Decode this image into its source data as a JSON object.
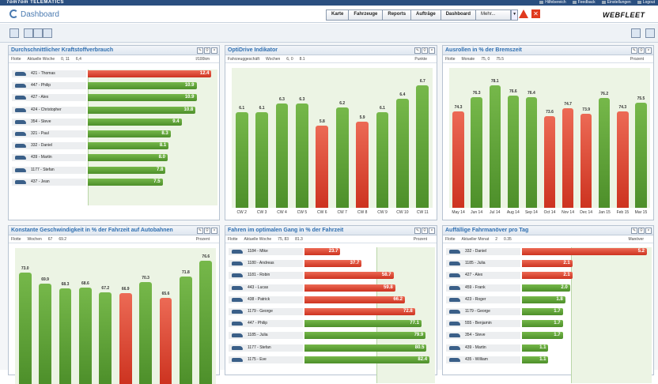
{
  "top": {
    "brand": "TomTom",
    "brand2": "TELEMATICS",
    "links": [
      "Hilfebereich",
      "Feedback",
      "Einstellungen",
      "Logout"
    ]
  },
  "header": {
    "title": "Dashboard",
    "nav": [
      "Karte",
      "Fahrzeuge",
      "Reports",
      "Aufträge",
      "Dashboard",
      "Mehr..."
    ],
    "logo": "WEBFLEET"
  },
  "p1": {
    "title": "Durchschnittlicher Kraftstoffverbrauch",
    "sub": [
      "Flotte",
      "Aktuelle Woche",
      "0, 11",
      "6,4"
    ],
    "unit": "l/100km",
    "rows": [
      {
        "n": "421 - Thomas",
        "v": 12.4,
        "c": "red"
      },
      {
        "n": "447 - Philip",
        "v": 10.9,
        "c": "green"
      },
      {
        "n": "427 - Alex",
        "v": 10.9,
        "c": "green"
      },
      {
        "n": "424 - Christopher",
        "v": 10.8,
        "c": "green"
      },
      {
        "n": "354 - Steve",
        "v": 9.4,
        "c": "green"
      },
      {
        "n": "321 - Paul",
        "v": 8.3,
        "c": "green"
      },
      {
        "n": "332 - Daniel",
        "v": 8.1,
        "c": "green"
      },
      {
        "n": "439 - Martin",
        "v": 8.0,
        "c": "green"
      },
      {
        "n": "1177 - Stefan",
        "v": 7.8,
        "c": "green"
      },
      {
        "n": "437 - Jean",
        "v": 7.5,
        "c": "green"
      }
    ]
  },
  "p2": {
    "title": "OptiDrive Indikator",
    "sub": [
      "Fahrzeuggeschäft",
      "Wochen",
      "6, 0",
      "8.1"
    ],
    "unit": "Punkte",
    "cats": [
      "CW 2",
      "CW 3",
      "CW 4",
      "CW 5",
      "CW 6",
      "CW 7",
      "CW 8",
      "CW 9",
      "CW 10",
      "CW 11"
    ],
    "vals": [
      6.1,
      6.1,
      6.3,
      6.3,
      5.8,
      6.2,
      5.9,
      6.1,
      6.4,
      6.7
    ],
    "cols": [
      "green",
      "green",
      "green",
      "green",
      "red",
      "green",
      "red",
      "green",
      "green",
      "green"
    ]
  },
  "p3": {
    "title": "Ausrollen in % der Bremszeit",
    "sub": [
      "Flotte",
      "Monate",
      "75, 0",
      "75.5"
    ],
    "unit": "Prozent",
    "cats": [
      "May 14",
      "Jun 14",
      "Jul 14",
      "Aug 14",
      "Sep 14",
      "Oct 14",
      "Nov 14",
      "Dec 14",
      "Jan 15",
      "Feb 15",
      "Mar 15"
    ],
    "vals": [
      74.3,
      76.3,
      78.1,
      76.6,
      76.4,
      73.6,
      74.7,
      73.9,
      76.2,
      74.3,
      75.5
    ],
    "cols": [
      "red",
      "green",
      "green",
      "green",
      "green",
      "red",
      "red",
      "red",
      "green",
      "red",
      "green"
    ]
  },
  "p4": {
    "title": "Konstante Geschwindigkeit in % der Fahrzeit auf Autobahnen",
    "sub": [
      "Flotte",
      "Wochen",
      "67",
      "69.2"
    ],
    "unit": "Prozent",
    "vals": [
      73.0,
      69.9,
      68.3,
      68.6,
      67.2,
      66.9,
      70.3,
      65.6,
      71.8,
      76.6
    ],
    "cols": [
      "green",
      "green",
      "green",
      "green",
      "green",
      "red",
      "green",
      "red",
      "green",
      "green"
    ]
  },
  "p5": {
    "title": "Fahren im optimalen Gang in % der Fahrzeit",
    "sub": [
      "Flotte",
      "Aktuelle Woche",
      "75, 83",
      "81.3"
    ],
    "unit": "Prozent",
    "rows": [
      {
        "n": "1184 - Mike",
        "v": 23.7,
        "c": "red"
      },
      {
        "n": "1180 - Andreas",
        "v": 37.7,
        "c": "red"
      },
      {
        "n": "1181 - Robin",
        "v": 58.7,
        "c": "red"
      },
      {
        "n": "443 - Lucas",
        "v": 59.8,
        "c": "red"
      },
      {
        "n": "438 - Patrick",
        "v": 66.2,
        "c": "red"
      },
      {
        "n": "1179 - George",
        "v": 72.8,
        "c": "red"
      },
      {
        "n": "447 - Philip",
        "v": 77.1,
        "c": "green"
      },
      {
        "n": "1185 - Julia",
        "v": 79.9,
        "c": "green"
      },
      {
        "n": "1177 - Stefan",
        "v": 80.5,
        "c": "green"
      },
      {
        "n": "1175 - Eve",
        "v": 82.4,
        "c": "green"
      }
    ]
  },
  "p6": {
    "title": "Auffällige Fahrmanöver pro Tag",
    "sub": [
      "Flotte",
      "Aktueller Monat",
      "2",
      "0.35"
    ],
    "unit": "Manöver",
    "rows": [
      {
        "n": "332 - Daniel",
        "v": 5.2,
        "c": "red"
      },
      {
        "n": "1185 - Julia",
        "v": 2.1,
        "c": "red"
      },
      {
        "n": "427 - Alex",
        "v": 2.1,
        "c": "red"
      },
      {
        "n": "459 - Frank",
        "v": 2.0,
        "c": "green"
      },
      {
        "n": "423 - Roger",
        "v": 1.8,
        "c": "green"
      },
      {
        "n": "1179 - George",
        "v": 1.7,
        "c": "green"
      },
      {
        "n": "555 - Benjamin",
        "v": 1.7,
        "c": "green"
      },
      {
        "n": "354 - Steve",
        "v": 1.7,
        "c": "green"
      },
      {
        "n": "439 - Martin",
        "v": 1.1,
        "c": "green"
      },
      {
        "n": "435 - William",
        "v": 1.1,
        "c": "green"
      }
    ]
  }
}
